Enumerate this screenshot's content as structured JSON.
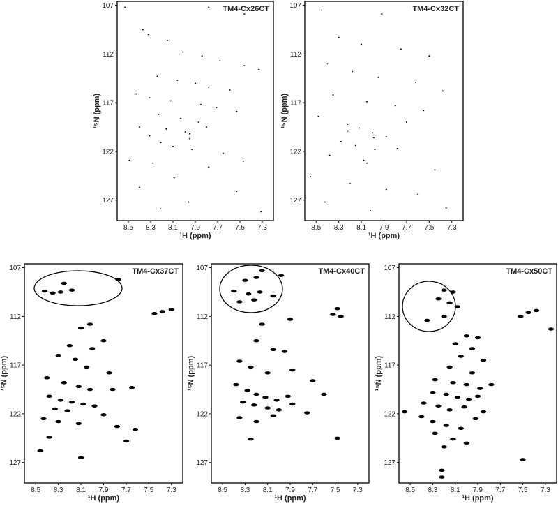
{
  "chart_data": [
    {
      "type": "scatter",
      "title": "TM4-Cx26CT",
      "xlabel": "¹H (ppm)",
      "ylabel": "¹⁵N (ppm)",
      "color": "#000000",
      "xlim": [
        8.6,
        7.2
      ],
      "ylim": [
        106.6,
        129.1
      ],
      "xticks": [
        8.5,
        8.3,
        8.1,
        7.9,
        7.7,
        7.5,
        7.3
      ],
      "yticks": [
        107,
        112,
        117,
        122,
        127
      ],
      "x": [
        8.37,
        8.32,
        8.15,
        8.01,
        7.84,
        7.68,
        7.46,
        7.33,
        8.24,
        8.06,
        7.9,
        7.78,
        7.59,
        8.43,
        8.31,
        8.12,
        7.85,
        7.71,
        7.53,
        8.23,
        8.03,
        7.87,
        8.4,
        8.16,
        7.99,
        7.8,
        8.31,
        8.21,
        8.1,
        7.93,
        7.65,
        8.49,
        7.78,
        8.09,
        8.4,
        7.53,
        7.96,
        8.21,
        7.31,
        8.53,
        7.78,
        7.46,
        8.28,
        7.47,
        7.95,
        7.95
      ],
      "values": [
        109.5,
        110.0,
        110.6,
        111.8,
        112.2,
        112.7,
        113.2,
        113.6,
        114.3,
        114.7,
        115.0,
        115.4,
        115.7,
        116.1,
        116.5,
        116.8,
        117.2,
        117.5,
        117.9,
        118.2,
        118.6,
        119.0,
        119.5,
        119.7,
        120.0,
        119.5,
        120.4,
        121.1,
        121.5,
        121.8,
        122.2,
        122.9,
        123.6,
        124.7,
        125.7,
        126.1,
        127.2,
        127.9,
        128.2,
        107.2,
        107.2,
        107.9,
        123.2,
        123.0,
        120.7,
        120.2
      ]
    },
    {
      "type": "scatter",
      "title": "TM4-Cx32CT",
      "xlabel": "¹H (ppm)",
      "ylabel": "¹⁵N (ppm)",
      "color": "#000000",
      "xlim": [
        8.6,
        7.2
      ],
      "ylim": [
        106.6,
        129.1
      ],
      "xticks": [
        8.5,
        8.3,
        8.1,
        7.9,
        7.7,
        7.5,
        7.3
      ],
      "yticks": [
        107,
        112,
        117,
        122,
        127
      ],
      "x": [
        8.45,
        7.92,
        8.3,
        8.1,
        7.75,
        7.5,
        8.4,
        8.18,
        7.95,
        7.62,
        7.38,
        8.35,
        8.05,
        7.8,
        7.55,
        8.48,
        8.22,
        8.12,
        8.0,
        7.88,
        7.7,
        8.28,
        8.15,
        7.98,
        7.78,
        8.05,
        8.38,
        7.45,
        8.55,
        8.2,
        7.88,
        7.6,
        8.42,
        8.02,
        7.35,
        8.22,
        7.99,
        8.08
      ],
      "values": [
        107.5,
        107.9,
        110.3,
        111.0,
        111.5,
        112.2,
        113.0,
        113.8,
        114.4,
        114.9,
        115.8,
        116.2,
        116.9,
        117.3,
        117.8,
        118.4,
        119.2,
        119.6,
        120.1,
        120.5,
        119.0,
        121.0,
        121.4,
        121.8,
        121.7,
        123.2,
        122.4,
        123.9,
        124.6,
        125.3,
        125.9,
        126.4,
        127.2,
        128.1,
        127.8,
        119.9,
        120.6,
        122.9
      ]
    },
    {
      "type": "scatter",
      "title": "TM4-Cx37CT",
      "xlabel": "¹H (ppm)",
      "ylabel": "¹⁵N (ppm)",
      "color": "#000000",
      "xlim": [
        8.6,
        7.2
      ],
      "ylim": [
        106.6,
        129.1
      ],
      "xticks": [
        8.5,
        8.3,
        8.1,
        7.9,
        7.7,
        7.5,
        7.3
      ],
      "yticks": [
        107,
        112,
        117,
        122,
        127
      ],
      "x": [
        8.42,
        8.35,
        8.28,
        8.18,
        8.25,
        7.77,
        7.45,
        7.38,
        7.3,
        8.1,
        8.02,
        8.2,
        8.0,
        7.9,
        8.3,
        8.15,
        8.05,
        7.85,
        8.4,
        8.25,
        8.12,
        8.02,
        7.82,
        7.65,
        8.38,
        8.28,
        8.18,
        8.08,
        7.98,
        8.33,
        8.22,
        7.9,
        8.43,
        8.3,
        8.12,
        7.78,
        7.62,
        8.38,
        7.7,
        8.46,
        8.1
      ],
      "values": [
        109.4,
        109.6,
        109.5,
        109.3,
        108.6,
        108.2,
        111.7,
        111.5,
        111.3,
        113.2,
        112.8,
        115.0,
        115.3,
        114.5,
        116.0,
        116.4,
        117.2,
        117.8,
        118.3,
        118.8,
        119.2,
        119.5,
        119.5,
        119.3,
        120.2,
        120.6,
        120.8,
        121.0,
        121.2,
        121.5,
        121.7,
        122.1,
        122.5,
        122.8,
        123.0,
        123.3,
        123.6,
        124.4,
        124.8,
        125.8,
        126.5
      ]
    },
    {
      "type": "scatter",
      "title": "TM4-Cx40CT",
      "xlabel": "¹H (ppm)",
      "ylabel": "¹⁵N (ppm)",
      "color": "#000000",
      "xlim": [
        8.6,
        7.2
      ],
      "ylim": [
        106.6,
        129.1
      ],
      "xticks": [
        8.5,
        8.3,
        8.1,
        7.9,
        7.7,
        7.5,
        7.3
      ],
      "yticks": [
        107,
        112,
        117,
        122,
        127
      ],
      "x": [
        8.15,
        8.3,
        8.2,
        7.98,
        8.4,
        8.27,
        8.17,
        8.05,
        8.35,
        8.22,
        7.52,
        7.48,
        7.45,
        7.9,
        8.15,
        8.2,
        8.05,
        7.95,
        8.35,
        8.25,
        8.1,
        7.88,
        7.7,
        8.38,
        8.28,
        8.2,
        8.12,
        8.02,
        7.92,
        8.32,
        8.22,
        8.1,
        8.0,
        7.88,
        7.75,
        8.35,
        8.2,
        8.05,
        8.25,
        7.48,
        7.6
      ],
      "values": [
        107.3,
        108.3,
        108.0,
        107.8,
        109.4,
        109.7,
        109.5,
        109.9,
        110.5,
        110.3,
        111.8,
        111.2,
        112.0,
        112.3,
        112.8,
        114.5,
        115.4,
        115.6,
        116.6,
        117.2,
        117.8,
        117.5,
        118.6,
        119.0,
        119.6,
        120.0,
        120.3,
        120.6,
        120.2,
        120.8,
        121.1,
        121.4,
        121.6,
        121.0,
        121.9,
        122.4,
        122.8,
        122.2,
        124.6,
        124.5,
        120.0
      ]
    },
    {
      "type": "scatter",
      "title": "TM4-Cx50CT",
      "xlabel": "¹H (ppm)",
      "ylabel": "¹⁵N (ppm)",
      "color": "#000000",
      "xlim": [
        8.6,
        7.2
      ],
      "ylim": [
        106.6,
        129.1
      ],
      "xticks": [
        8.5,
        8.3,
        8.1,
        7.9,
        7.7,
        7.5,
        7.3
      ],
      "yticks": [
        107,
        112,
        117,
        122,
        127
      ],
      "x": [
        8.2,
        8.12,
        8.25,
        8.15,
        8.08,
        8.35,
        8.2,
        7.45,
        7.38,
        7.52,
        7.25,
        8.0,
        7.9,
        8.1,
        7.95,
        8.05,
        7.85,
        8.15,
        7.95,
        8.28,
        8.12,
        8.0,
        7.88,
        7.78,
        8.3,
        8.18,
        8.08,
        7.98,
        7.9,
        8.38,
        8.25,
        8.15,
        8.02,
        7.85,
        8.55,
        8.4,
        8.3,
        8.18,
        8.05,
        7.92,
        8.28,
        8.12,
        8.0,
        8.2,
        7.5,
        8.22,
        8.22
      ],
      "values": [
        109.3,
        109.5,
        110.2,
        110.6,
        111.0,
        112.4,
        112.0,
        111.6,
        111.4,
        112.0,
        113.3,
        114.0,
        114.2,
        114.8,
        115.3,
        116.1,
        116.5,
        117.2,
        117.8,
        118.5,
        118.8,
        119.0,
        119.4,
        119.0,
        119.8,
        120.0,
        120.3,
        120.5,
        120.2,
        120.9,
        121.2,
        121.6,
        121.3,
        121.8,
        121.8,
        122.3,
        122.8,
        123.2,
        123.5,
        122.5,
        124.0,
        124.6,
        125.0,
        125.4,
        126.7,
        127.8,
        128.5
      ]
    }
  ]
}
